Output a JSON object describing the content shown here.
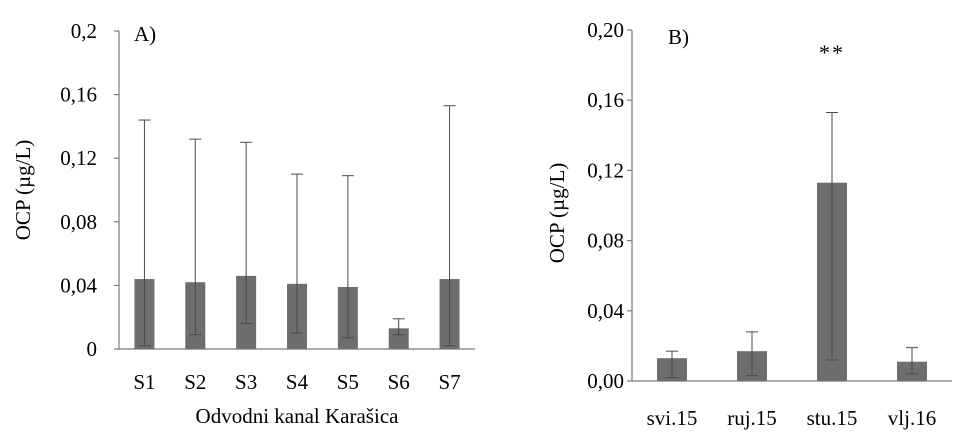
{
  "colors": {
    "bar": "#6e6e6e",
    "axis": "#7a7a7a",
    "errorbar": "#4a4a4a"
  },
  "chart_data": [
    {
      "type": "bar",
      "panel_label": "A)",
      "title": "",
      "xlabel": "Odvodni kanal Karašica",
      "ylabel": "OCP (µg/L)",
      "categories": [
        "S1",
        "S2",
        "S3",
        "S4",
        "S5",
        "S6",
        "S7"
      ],
      "values": [
        0.044,
        0.042,
        0.046,
        0.041,
        0.039,
        0.013,
        0.044
      ],
      "error_low": [
        0.002,
        0.009,
        0.016,
        0.01,
        0.007,
        0.009,
        0.002
      ],
      "error_high": [
        0.144,
        0.132,
        0.13,
        0.11,
        0.109,
        0.019,
        0.153
      ],
      "ylim": [
        0,
        0.2
      ],
      "yticks": [
        0,
        0.04,
        0.08,
        0.12,
        0.16,
        0.2
      ],
      "ytick_labels": [
        "0",
        "0,04",
        "0,08",
        "0,12",
        "0,16",
        "0,2"
      ],
      "grid": false,
      "annotations": []
    },
    {
      "type": "bar",
      "panel_label": "B)",
      "title": "",
      "xlabel": "",
      "ylabel": "OCP (µg/L)",
      "categories": [
        "svi.15",
        "ruj.15",
        "stu.15",
        "vlj.16"
      ],
      "values": [
        0.013,
        0.017,
        0.113,
        0.011
      ],
      "error_low": [
        0.002,
        0.003,
        0.012,
        0.004
      ],
      "error_high": [
        0.017,
        0.028,
        0.153,
        0.019
      ],
      "ylim": [
        0,
        0.2
      ],
      "yticks": [
        0,
        0.04,
        0.08,
        0.12,
        0.16,
        0.2
      ],
      "ytick_labels": [
        "0,00",
        "0,04",
        "0,08",
        "0,12",
        "0,16",
        "0,20"
      ],
      "grid": false,
      "annotations": [
        {
          "category": "stu.15",
          "text": "**"
        }
      ]
    }
  ]
}
